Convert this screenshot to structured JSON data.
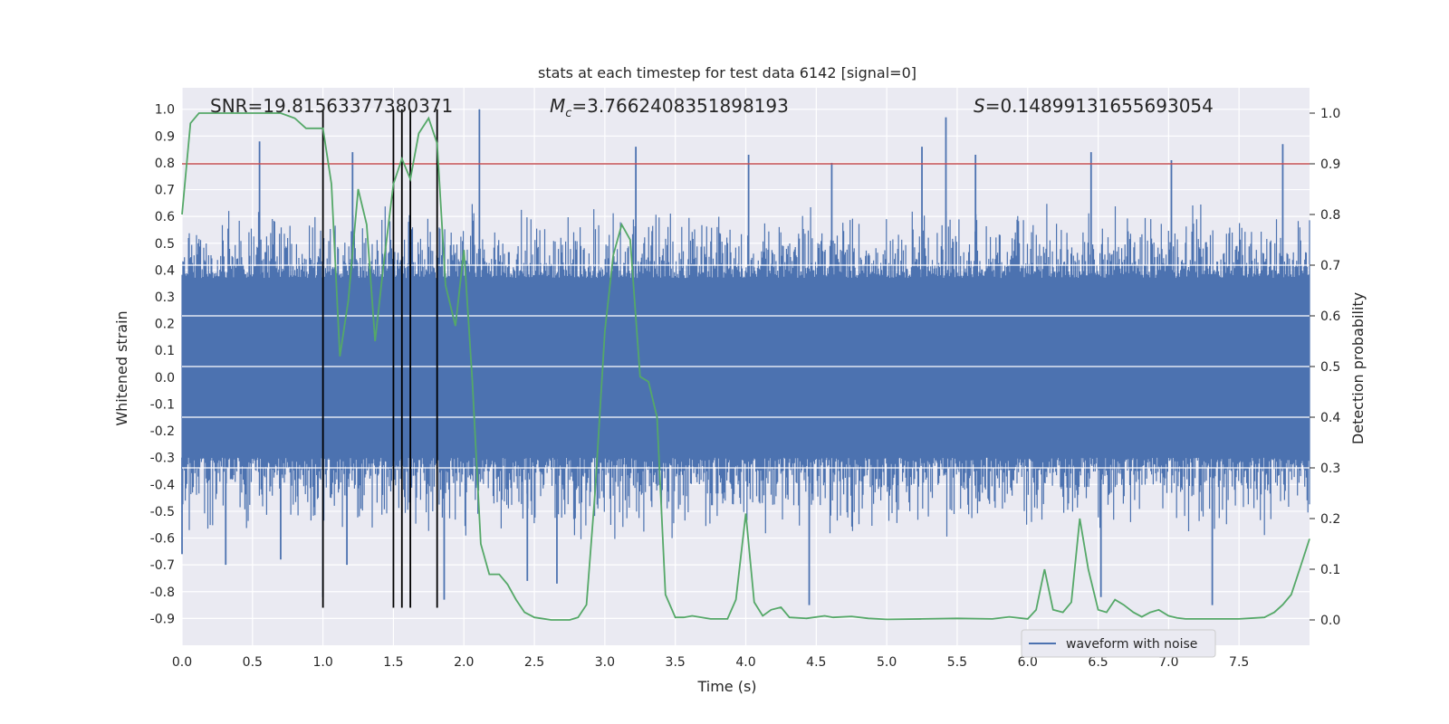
{
  "chart_data": {
    "type": "line",
    "title": "stats at each timestep for test data 6142 [signal=0]",
    "xlabel": "Time (s)",
    "ylabel_left": "Whitened strain",
    "ylabel_right": "Detection probability",
    "xlim": [
      0.0,
      8.0
    ],
    "ylim_left": [
      -1.0,
      1.08
    ],
    "ylim_right": [
      -0.05,
      1.05
    ],
    "x_ticks": [
      "0.0",
      "0.5",
      "1.0",
      "1.5",
      "2.0",
      "2.5",
      "3.0",
      "3.5",
      "4.0",
      "4.5",
      "5.0",
      "5.5",
      "6.0",
      "6.5",
      "7.0",
      "7.5"
    ],
    "x_tick_values": [
      0.0,
      0.5,
      1.0,
      1.5,
      2.0,
      2.5,
      3.0,
      3.5,
      4.0,
      4.5,
      5.0,
      5.5,
      6.0,
      6.5,
      7.0,
      7.5
    ],
    "y_ticks_left": [
      "1.0",
      "0.9",
      "0.8",
      "0.7",
      "0.6",
      "0.5",
      "0.4",
      "0.3",
      "0.2",
      "0.1",
      "0.0",
      "-0.1",
      "-0.2",
      "-0.3",
      "-0.4",
      "-0.5",
      "-0.6",
      "-0.7",
      "-0.8",
      "-0.9"
    ],
    "y_tick_values_left": [
      1.0,
      0.9,
      0.8,
      0.7,
      0.6,
      0.5,
      0.4,
      0.3,
      0.2,
      0.1,
      0.0,
      -0.1,
      -0.2,
      -0.3,
      -0.4,
      -0.5,
      -0.6,
      -0.7,
      -0.8,
      -0.9
    ],
    "y_ticks_right": [
      "1.0",
      "0.9",
      "0.8",
      "0.7",
      "0.6",
      "0.5",
      "0.4",
      "0.3",
      "0.2",
      "0.1",
      "0.0"
    ],
    "y_tick_values_right": [
      1.0,
      0.9,
      0.8,
      0.7,
      0.6,
      0.5,
      0.4,
      0.3,
      0.2,
      0.1,
      0.0
    ],
    "annotations": {
      "snr": "SNR=19.81563377380371",
      "mc_symbol": "M",
      "mc_sub": "c",
      "mc_value": "=3.7662408351898193",
      "s_symbol": "S",
      "s_value": "=0.14899131655693054"
    },
    "threshold_right": 0.9,
    "vertical_markers_x": [
      1.0,
      1.5,
      1.56,
      1.62,
      1.81
    ],
    "vertical_marker_range_left": [
      -0.86,
      1.0
    ],
    "legend": {
      "label": "waveform with noise",
      "position": "lower-right"
    },
    "waveform": {
      "name": "waveform with noise",
      "color": "#4c72b0",
      "core_band_left": [
        -0.3,
        0.37
      ],
      "typical_range_left": [
        -0.55,
        0.6
      ],
      "spikes": [
        {
          "x": 0.0,
          "y": -0.66
        },
        {
          "x": 0.31,
          "y": -0.7
        },
        {
          "x": 0.55,
          "y": 0.88
        },
        {
          "x": 0.7,
          "y": -0.68
        },
        {
          "x": 1.0,
          "y": -0.82
        },
        {
          "x": 1.17,
          "y": -0.7
        },
        {
          "x": 1.21,
          "y": 0.84
        },
        {
          "x": 1.86,
          "y": -0.83
        },
        {
          "x": 2.11,
          "y": 1.0
        },
        {
          "x": 2.45,
          "y": -0.76
        },
        {
          "x": 2.66,
          "y": -0.77
        },
        {
          "x": 3.22,
          "y": 0.86
        },
        {
          "x": 4.02,
          "y": 0.83
        },
        {
          "x": 4.45,
          "y": -0.85
        },
        {
          "x": 4.61,
          "y": 0.8
        },
        {
          "x": 5.25,
          "y": 0.86
        },
        {
          "x": 5.42,
          "y": 0.97
        },
        {
          "x": 5.63,
          "y": 0.83
        },
        {
          "x": 6.45,
          "y": 0.84
        },
        {
          "x": 6.52,
          "y": -0.82
        },
        {
          "x": 7.02,
          "y": 0.81
        },
        {
          "x": 7.31,
          "y": -0.85
        },
        {
          "x": 7.81,
          "y": 0.87
        }
      ]
    },
    "series": [
      {
        "name": "detection probability",
        "color": "#55a868",
        "axis": "right",
        "x": [
          0.0,
          0.06,
          0.12,
          0.25,
          0.5,
          0.7,
          0.8,
          0.88,
          0.95,
          1.0,
          1.06,
          1.12,
          1.18,
          1.25,
          1.31,
          1.37,
          1.43,
          1.5,
          1.56,
          1.62,
          1.68,
          1.75,
          1.81,
          1.87,
          1.94,
          2.0,
          2.06,
          2.12,
          2.18,
          2.25,
          2.31,
          2.37,
          2.43,
          2.5,
          2.62,
          2.75,
          2.81,
          2.87,
          2.93,
          3.0,
          3.06,
          3.12,
          3.18,
          3.25,
          3.31,
          3.37,
          3.43,
          3.5,
          3.56,
          3.62,
          3.75,
          3.87,
          3.93,
          4.0,
          4.06,
          4.12,
          4.18,
          4.25,
          4.31,
          4.43,
          4.56,
          4.62,
          4.75,
          4.87,
          5.0,
          5.25,
          5.5,
          5.75,
          5.87,
          6.0,
          6.06,
          6.12,
          6.18,
          6.25,
          6.31,
          6.37,
          6.43,
          6.5,
          6.56,
          6.62,
          6.68,
          6.75,
          6.81,
          6.87,
          6.93,
          7.0,
          7.06,
          7.12,
          7.25,
          7.5,
          7.68,
          7.75,
          7.81,
          7.87,
          7.93,
          8.0
        ],
        "y": [
          0.8,
          0.98,
          1.0,
          1.0,
          1.0,
          1.0,
          0.99,
          0.97,
          0.97,
          0.97,
          0.86,
          0.52,
          0.63,
          0.85,
          0.78,
          0.55,
          0.7,
          0.86,
          0.91,
          0.87,
          0.96,
          0.99,
          0.94,
          0.66,
          0.58,
          0.73,
          0.47,
          0.15,
          0.09,
          0.09,
          0.07,
          0.04,
          0.015,
          0.005,
          0.0,
          0.0,
          0.005,
          0.03,
          0.25,
          0.57,
          0.72,
          0.78,
          0.75,
          0.48,
          0.47,
          0.4,
          0.05,
          0.005,
          0.005,
          0.008,
          0.002,
          0.002,
          0.04,
          0.21,
          0.035,
          0.008,
          0.02,
          0.025,
          0.005,
          0.003,
          0.008,
          0.005,
          0.007,
          0.003,
          0.001,
          0.002,
          0.003,
          0.002,
          0.006,
          0.002,
          0.02,
          0.1,
          0.02,
          0.015,
          0.035,
          0.2,
          0.1,
          0.02,
          0.015,
          0.04,
          0.03,
          0.015,
          0.006,
          0.015,
          0.02,
          0.008,
          0.004,
          0.002,
          0.002,
          0.002,
          0.005,
          0.015,
          0.03,
          0.05,
          0.1,
          0.16
        ]
      }
    ]
  }
}
